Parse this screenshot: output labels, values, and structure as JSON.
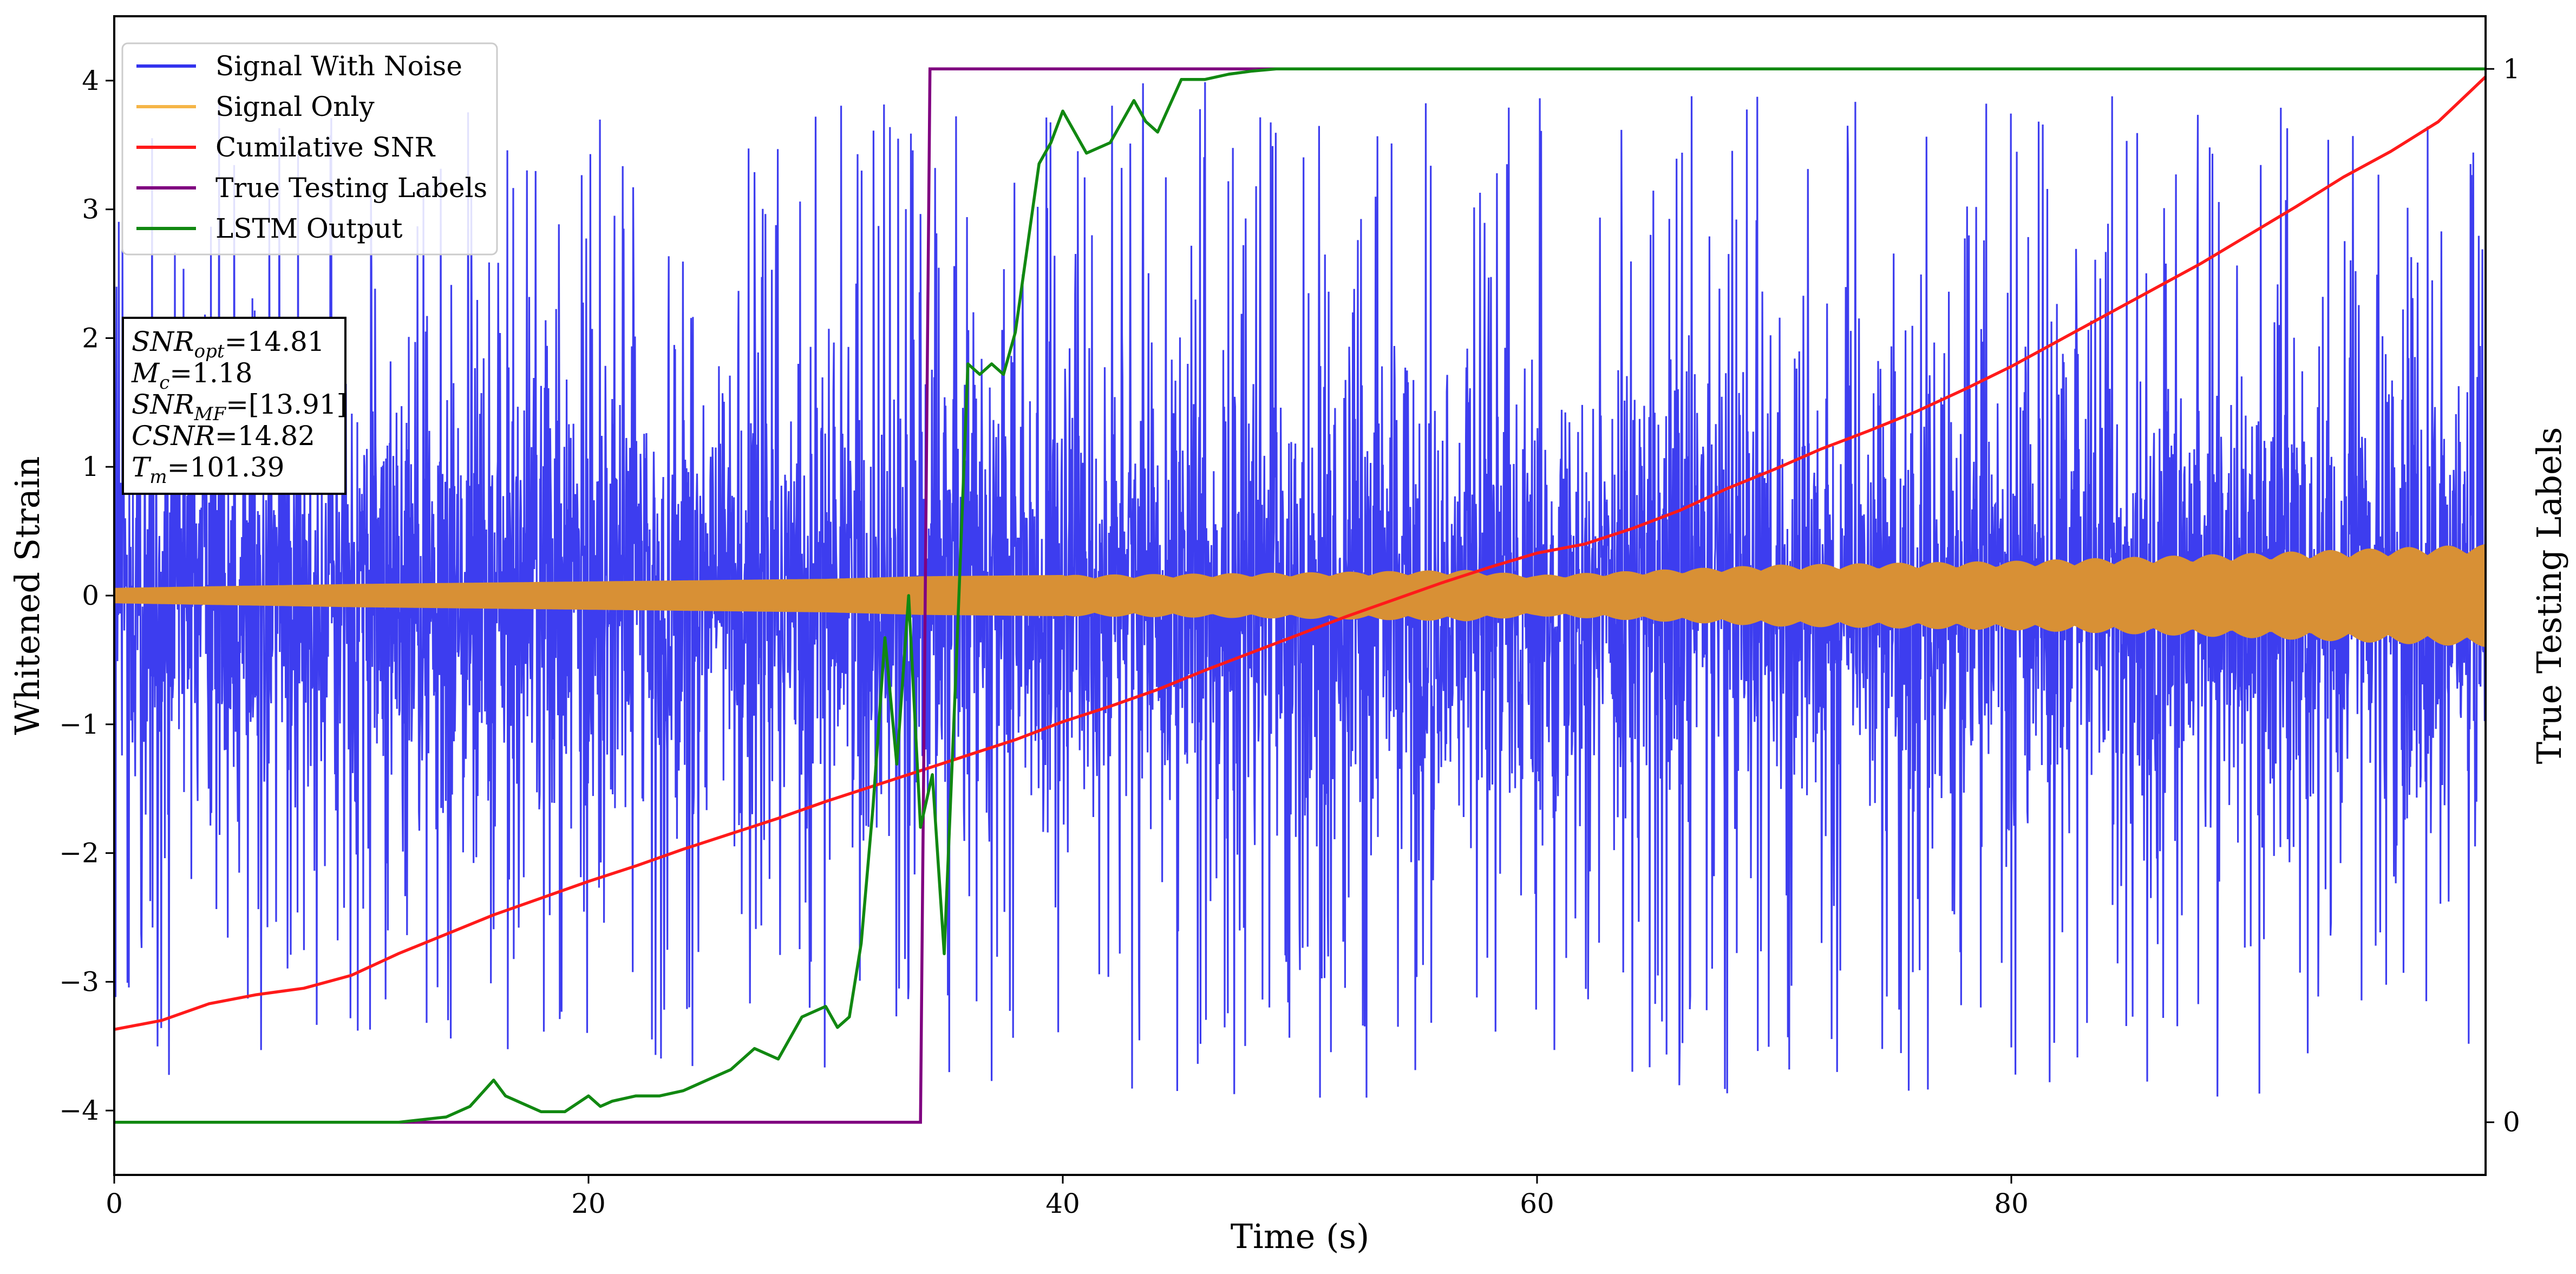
{
  "chart_data": {
    "type": "line",
    "xlabel": "Time (s)",
    "ylabel": "Whitened Strain",
    "y2label": "True Testing Labels",
    "xlim": [
      0,
      100
    ],
    "ylim": [
      -4.5,
      4.5
    ],
    "y2lim": [
      -0.05,
      1.05
    ],
    "xticks": [
      0,
      20,
      40,
      60,
      80
    ],
    "yticks": [
      -4,
      -3,
      -2,
      -1,
      0,
      1,
      2,
      3,
      4
    ],
    "y2ticks": [
      0,
      1
    ],
    "grid": false,
    "legend_position": "upper-left",
    "legend": [
      {
        "label": "Signal With Noise",
        "color": "#3333ee"
      },
      {
        "label": "Signal Only",
        "color": "#f5b547"
      },
      {
        "label": "Cumilative SNR",
        "color": "#ff1a1a"
      },
      {
        "label": "True Testing Labels",
        "color": "#800080"
      },
      {
        "label": "LSTM Output",
        "color": "#118811"
      }
    ],
    "annotation": {
      "lines": [
        {
          "sym": "SNR",
          "sub": "opt",
          "rest": "=14.81"
        },
        {
          "sym": "M",
          "sub": "c",
          "rest": "=1.18"
        },
        {
          "sym": "SNR",
          "sub": "MF",
          "rest": "=[13.91]"
        },
        {
          "sym": "CSNR",
          "sub": "",
          "rest": "=14.82"
        },
        {
          "sym": "T",
          "sub": "m",
          "rest": "=101.39"
        }
      ]
    },
    "series": [
      {
        "name": "Signal With Noise",
        "axis": "left",
        "color": "#3333ee",
        "description_values": "dense noise spanning roughly -4 to +4",
        "envelope_x": [
          0,
          10,
          20,
          30,
          40,
          50,
          60,
          70,
          80,
          90,
          100
        ],
        "envelope_low": [
          -3.7,
          -3.8,
          -3.9,
          -3.9,
          -3.8,
          -3.9,
          -3.9,
          -3.9,
          -3.9,
          -4.0,
          -3.6
        ],
        "envelope_high": [
          3.9,
          3.8,
          3.8,
          3.9,
          4.0,
          4.1,
          3.9,
          3.9,
          3.9,
          3.9,
          3.6
        ]
      },
      {
        "name": "Signal Only",
        "axis": "left",
        "color": "#d89035",
        "envelope_x": [
          0,
          10,
          20,
          30,
          34,
          40,
          50,
          57,
          60,
          70,
          80,
          90,
          100
        ],
        "envelope_half": [
          0.06,
          0.09,
          0.11,
          0.13,
          0.15,
          0.16,
          0.18,
          0.2,
          0.16,
          0.24,
          0.27,
          0.33,
          0.4
        ]
      },
      {
        "name": "Cumilative SNR",
        "axis": "left",
        "color": "#ff1a1a",
        "x": [
          0,
          2,
          4,
          6,
          8,
          10,
          12,
          14,
          16,
          18,
          20,
          22,
          24,
          26,
          28,
          30,
          32,
          34,
          36,
          38,
          40,
          42,
          44,
          46,
          48,
          50,
          52,
          54,
          56,
          58,
          60,
          62,
          64,
          66,
          68,
          70,
          72,
          74,
          76,
          78,
          80,
          82,
          84,
          86,
          88,
          90,
          92,
          94,
          96,
          98,
          100
        ],
        "y": [
          -3.37,
          -3.3,
          -3.17,
          -3.1,
          -3.05,
          -2.95,
          -2.78,
          -2.63,
          -2.48,
          -2.35,
          -2.22,
          -2.1,
          -1.97,
          -1.85,
          -1.73,
          -1.6,
          -1.48,
          -1.36,
          -1.24,
          -1.12,
          -0.98,
          -0.86,
          -0.73,
          -0.58,
          -0.44,
          -0.3,
          -0.16,
          -0.03,
          0.1,
          0.22,
          0.33,
          0.4,
          0.52,
          0.66,
          0.83,
          0.98,
          1.14,
          1.28,
          1.43,
          1.6,
          1.78,
          1.98,
          2.18,
          2.38,
          2.58,
          2.8,
          3.02,
          3.25,
          3.45,
          3.68,
          4.03
        ]
      },
      {
        "name": "True Testing Labels",
        "axis": "right",
        "color": "#800080",
        "x": [
          0,
          34.0,
          34.4,
          57.0
        ],
        "y": [
          0,
          0,
          1,
          1
        ]
      },
      {
        "name": "LSTM Output",
        "axis": "right",
        "color": "#118811",
        "x": [
          0,
          12,
          14,
          15,
          16,
          16.5,
          17,
          18,
          19,
          20,
          20.5,
          21,
          22,
          23,
          24,
          25,
          26,
          27,
          28,
          29,
          30,
          30.5,
          31,
          31.5,
          32,
          32.5,
          33,
          33.5,
          34,
          34.5,
          35,
          35.5,
          36,
          36.5,
          37,
          37.5,
          38,
          38.5,
          39,
          39.5,
          40,
          41,
          42,
          43,
          43.5,
          44,
          45,
          46,
          47,
          48,
          49,
          50,
          52,
          55,
          60,
          70,
          80,
          90,
          100
        ],
        "y": [
          0,
          0,
          0.005,
          0.015,
          0.04,
          0.025,
          0.02,
          0.01,
          0.01,
          0.025,
          0.015,
          0.02,
          0.025,
          0.025,
          0.03,
          0.04,
          0.05,
          0.07,
          0.06,
          0.1,
          0.11,
          0.09,
          0.1,
          0.17,
          0.3,
          0.46,
          0.34,
          0.5,
          0.28,
          0.33,
          0.16,
          0.43,
          0.72,
          0.71,
          0.72,
          0.71,
          0.75,
          0.83,
          0.91,
          0.93,
          0.96,
          0.92,
          0.93,
          0.97,
          0.95,
          0.94,
          0.99,
          0.99,
          0.995,
          0.998,
          1,
          1,
          1,
          1,
          1,
          1,
          1,
          1,
          1
        ]
      }
    ]
  }
}
